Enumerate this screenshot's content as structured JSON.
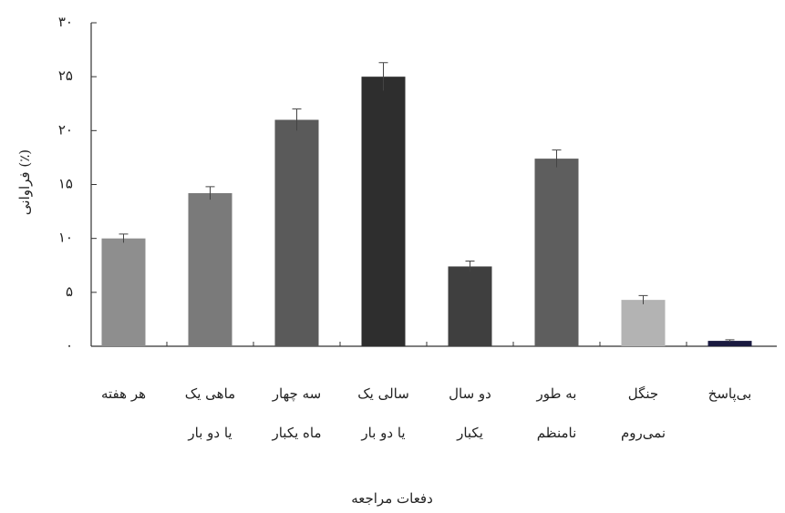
{
  "chart_data": {
    "type": "bar",
    "categories": [
      [
        "هر هفته"
      ],
      [
        "ماهی یک",
        "یا دو بار"
      ],
      [
        "سه چهار",
        "ماه یکبار"
      ],
      [
        "سالی یک",
        "یا دو بار"
      ],
      [
        "دو سال",
        "یکبار"
      ],
      [
        "به طور",
        "نامنظم"
      ],
      [
        "جنگل",
        "نمی‌روم"
      ],
      [
        "بی‌پاسخ"
      ]
    ],
    "values": [
      10,
      14.2,
      21,
      25,
      7.4,
      17.4,
      4.3,
      0.5
    ],
    "errors": [
      0.4,
      0.6,
      1,
      1.3,
      0.5,
      0.8,
      0.4,
      0.1
    ],
    "colors": [
      "#8e8e8e",
      "#7a7a7a",
      "#5a5a5a",
      "#2e2e2e",
      "#3f3f3f",
      "#5e5e5e",
      "#b3b3b3",
      "#1a1a40"
    ],
    "ylim": [
      0,
      30
    ],
    "yticks": [
      {
        "value": 0,
        "label": "٠"
      },
      {
        "value": 5,
        "label": "۵"
      },
      {
        "value": 10,
        "label": "١٠"
      },
      {
        "value": 15,
        "label": "١۵"
      },
      {
        "value": 20,
        "label": "٢٠"
      },
      {
        "value": 25,
        "label": "٢۵"
      },
      {
        "value": 30,
        "label": "٣٠"
      }
    ],
    "y_label": "فراوانی (٪)",
    "x_label": "دفعات مراجعه"
  }
}
